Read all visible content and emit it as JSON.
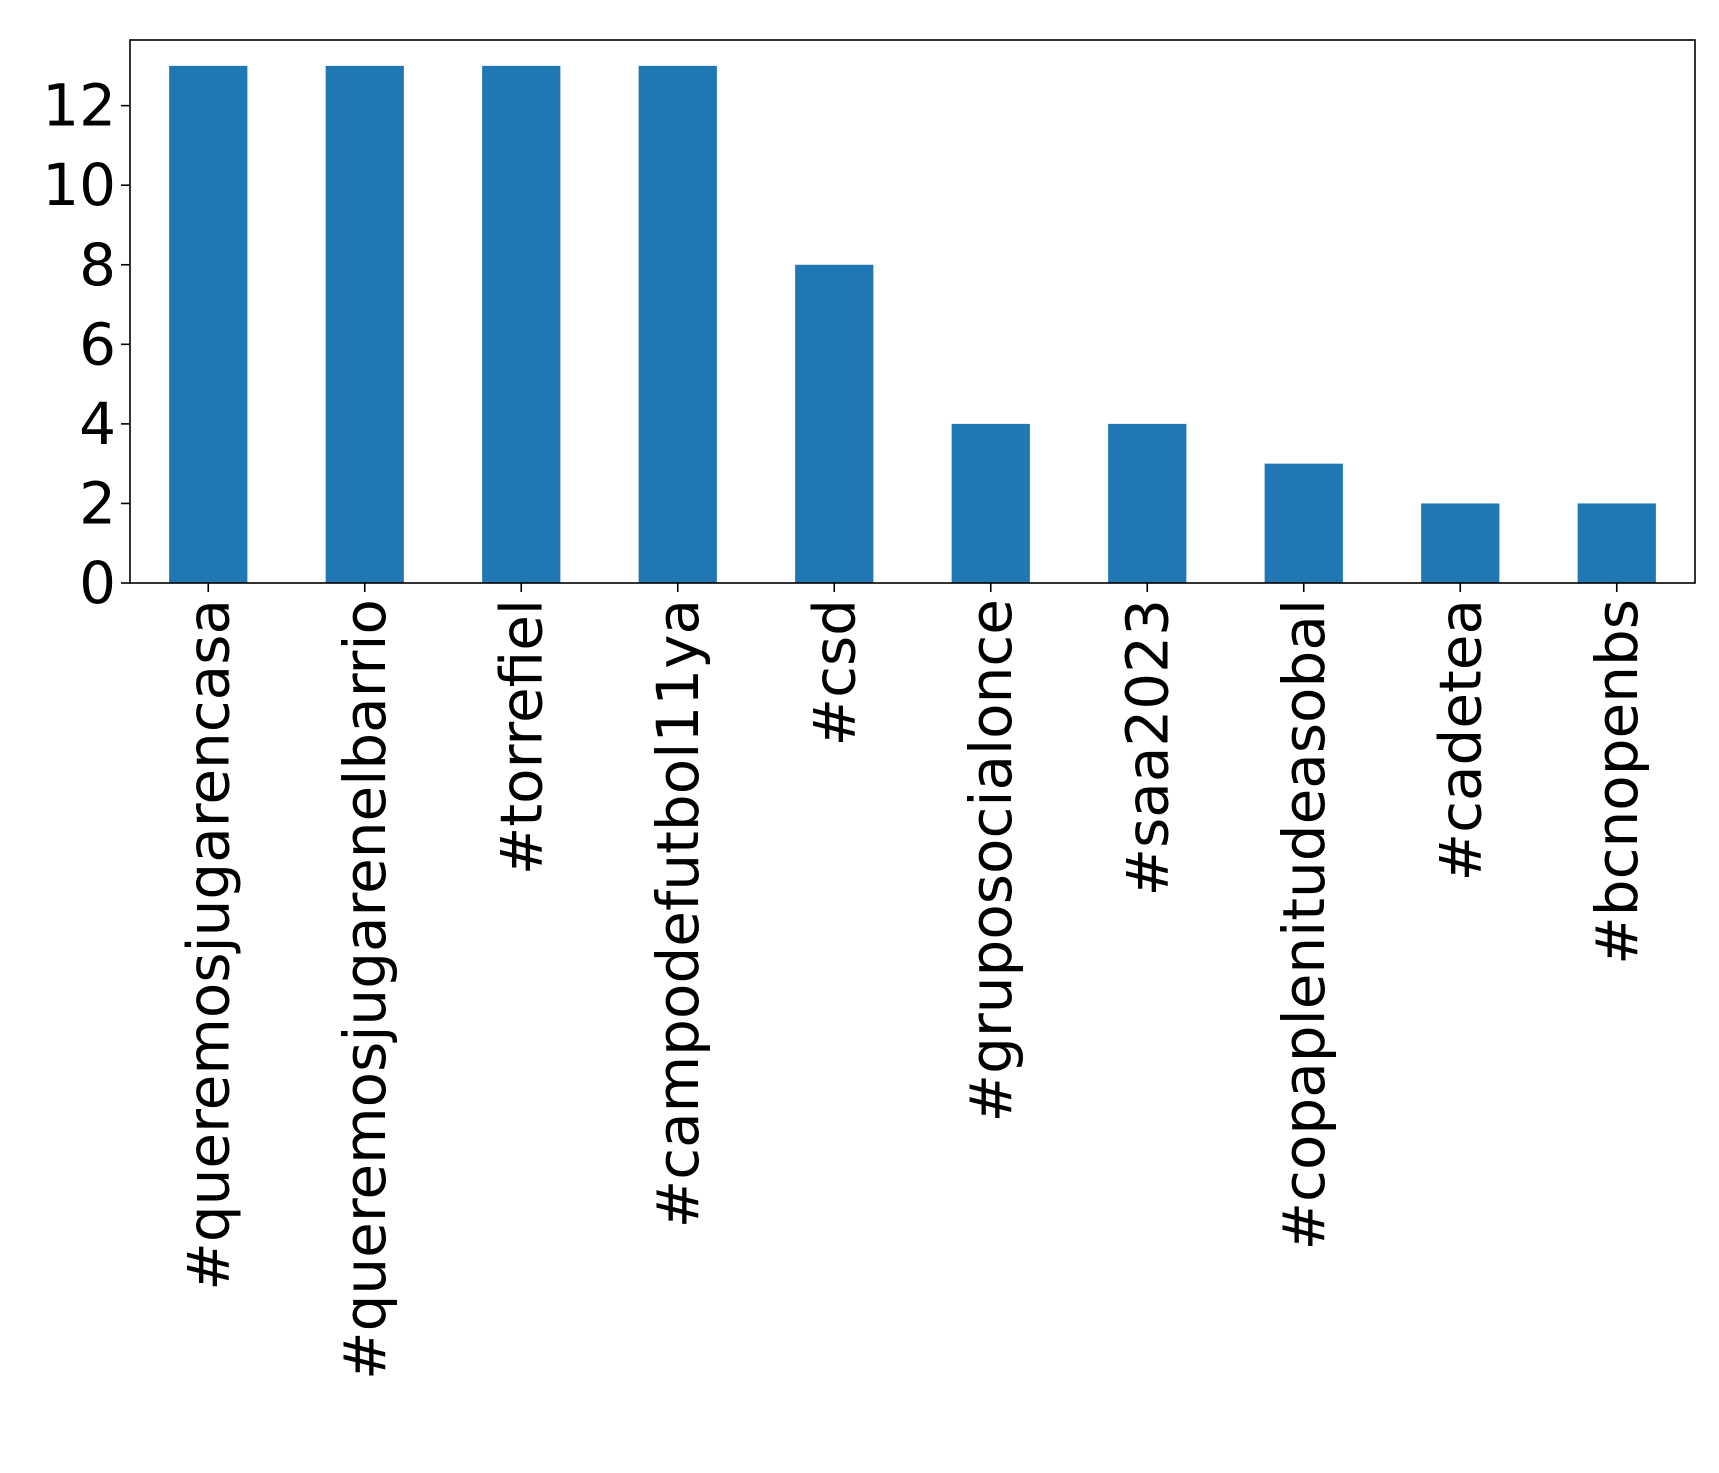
{
  "chart_data": {
    "type": "bar",
    "title": "",
    "xlabel": "",
    "ylabel": "",
    "categories": [
      "#queremosjugarencasa",
      "#queremosjugarenelbarrio",
      "#torrefiel",
      "#campodefutbol11ya",
      "#csd",
      "#gruposocialonce",
      "#saa2023",
      "#copaplenitudeasobal",
      "#cadetea",
      "#bcnopenbs"
    ],
    "values": [
      13,
      13,
      13,
      13,
      8,
      4,
      4,
      3,
      2,
      2
    ],
    "ylim": [
      0,
      13.65
    ],
    "yticks": [
      0,
      2,
      4,
      6,
      8,
      10,
      12
    ],
    "grid": false,
    "legend": "none",
    "colors": {
      "bar": "#1f77b4",
      "axis": "#000000",
      "background": "#ffffff"
    }
  }
}
